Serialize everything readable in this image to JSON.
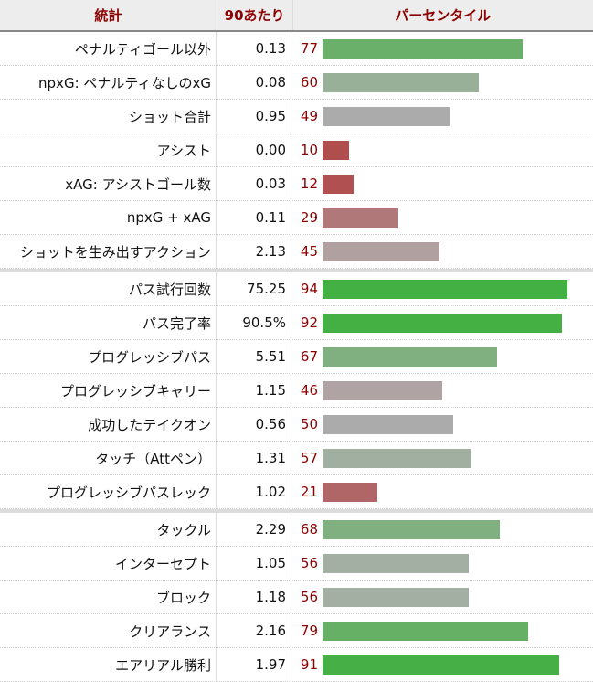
{
  "header": {
    "stat": "統計",
    "per90": "90あたり",
    "percentile": "パーセンタイル"
  },
  "groups": [
    [
      {
        "stat": "ペナルティゴール以外",
        "per90": "0.13",
        "percentile": 77,
        "color": "#6aaf6a"
      },
      {
        "stat": "npxG: ペナルティなしのxG",
        "per90": "0.08",
        "percentile": 60,
        "color": "#97b097"
      },
      {
        "stat": "ショット合計",
        "per90": "0.95",
        "percentile": 49,
        "color": "#ababab"
      },
      {
        "stat": "アシスト",
        "per90": "0.00",
        "percentile": 10,
        "color": "#b04e4e"
      },
      {
        "stat": "xAG: アシストゴール数",
        "per90": "0.03",
        "percentile": 12,
        "color": "#b05050"
      },
      {
        "stat": "npxG + xAG",
        "per90": "0.11",
        "percentile": 29,
        "color": "#b07878"
      },
      {
        "stat": "ショットを生み出すアクション",
        "per90": "2.13",
        "percentile": 45,
        "color": "#b0a0a0"
      }
    ],
    [
      {
        "stat": "パス試行回数",
        "per90": "75.25",
        "percentile": 94,
        "color": "#42b042"
      },
      {
        "stat": "パス完了率",
        "per90": "90.5%",
        "percentile": 92,
        "color": "#44b044"
      },
      {
        "stat": "プログレッシブパス",
        "per90": "5.51",
        "percentile": 67,
        "color": "#80b080"
      },
      {
        "stat": "プログレッシブキャリー",
        "per90": "1.15",
        "percentile": 46,
        "color": "#b0a3a3"
      },
      {
        "stat": "成功したテイクオン",
        "per90": "0.56",
        "percentile": 50,
        "color": "#ababab"
      },
      {
        "stat": "タッチ（Attペン）",
        "per90": "1.31",
        "percentile": 57,
        "color": "#a0afa0"
      },
      {
        "stat": "プログレッシブパスレック",
        "per90": "1.02",
        "percentile": 21,
        "color": "#b06666"
      }
    ],
    [
      {
        "stat": "タックル",
        "per90": "2.29",
        "percentile": 68,
        "color": "#80b080"
      },
      {
        "stat": "インターセプト",
        "per90": "1.05",
        "percentile": 56,
        "color": "#a2afa2"
      },
      {
        "stat": "ブロック",
        "per90": "1.18",
        "percentile": 56,
        "color": "#a2afa2"
      },
      {
        "stat": "クリアランス",
        "per90": "2.16",
        "percentile": 79,
        "color": "#66b066"
      },
      {
        "stat": "エアリアル勝利",
        "per90": "1.97",
        "percentile": 91,
        "color": "#46b046"
      }
    ]
  ]
}
